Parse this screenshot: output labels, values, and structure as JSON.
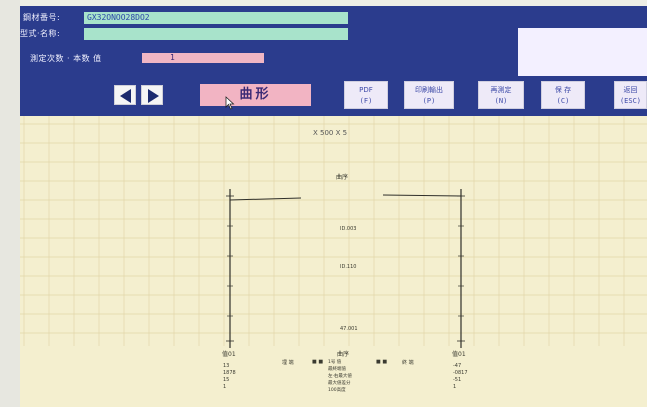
{
  "header": {
    "sample_no_label": "鋼材番号:",
    "sample_no_value": "GX32ONOO28DO2",
    "type_name_label": "型式·名称:",
    "type_name_value": "",
    "measure_count_label": "測定次数 · 本数 值",
    "measure_count_value": "1"
  },
  "toolbar": {
    "mode_label": "曲形",
    "buttons": [
      {
        "label": "PDF",
        "key": "(F)"
      },
      {
        "label": "印刷輸出",
        "key": "(P)"
      },
      {
        "label": "再測定",
        "key": "(N)"
      },
      {
        "label": "保 存",
        "key": "(C)"
      },
      {
        "label": "返回",
        "key": "(ESC)"
      }
    ]
  },
  "plot": {
    "magnification": "X 500  X 5",
    "center_title": "曲序",
    "center_value_1": "ID.003",
    "center_value_2": "ID.110",
    "center_value_3": "47.001",
    "left_header": "值01",
    "left_values": [
      "13",
      "1878",
      "15",
      "1"
    ],
    "right_header": "值01",
    "right_values": [
      "-47",
      "-0817",
      "-51",
      "1"
    ],
    "mid_left_label": "埋 端",
    "mid_right_label": "終 端",
    "mid_dots_left": "■ ■",
    "mid_dots_right": "■ ■",
    "center_list_title": "曲序",
    "center_list": [
      "1号 值",
      "最終端值",
      "左·右最大値",
      "最大値差分",
      "100高度"
    ]
  },
  "colors": {
    "header_bg": "#2b3c8d",
    "field_bg": "#a8e3cb",
    "pink": "#f0b6c4",
    "plot_bg": "#f4efcf",
    "grid": "#e2d6a8"
  }
}
